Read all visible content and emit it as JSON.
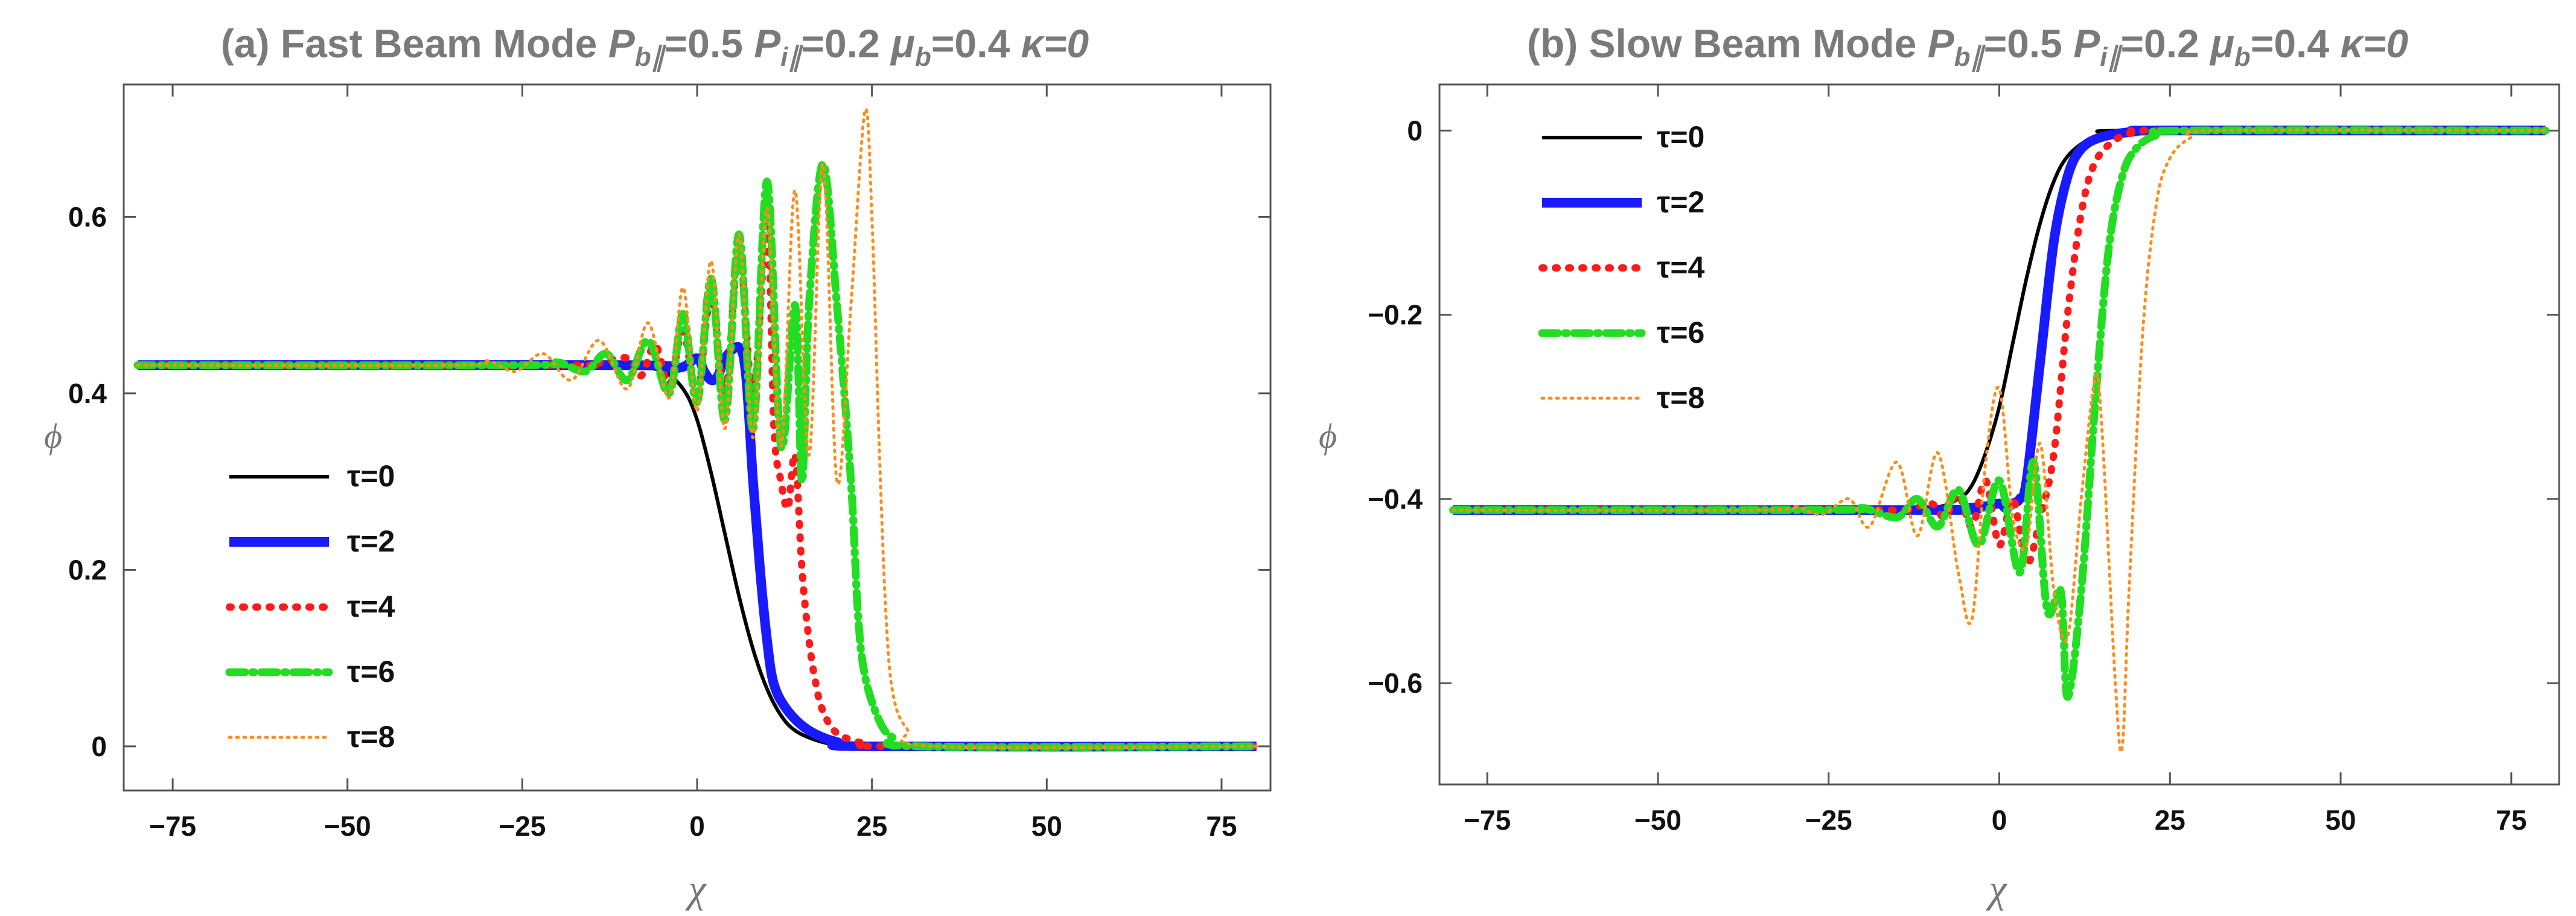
{
  "chart_data": [
    {
      "type": "line",
      "title": "(a) Fast Beam Mode P_b∥=0.5 P_i∥=0.2 μ_b=0.4 κ=0",
      "title_parts": {
        "prefix": "(a) Fast Beam Mode ",
        "p_b": "P",
        "p_b_sub": "b∥",
        "p_b_val": "=0.5 ",
        "p_i": "P",
        "p_i_sub": "i∥",
        "p_i_val": "=0.2 ",
        "mu": "μ",
        "mu_sub": "b",
        "mu_val": "=0.4 ",
        "kappa": "κ=0"
      },
      "xlabel": "χ",
      "ylabel": "ϕ",
      "xlim": [
        -82,
        82
      ],
      "ylim": [
        -0.05,
        0.75
      ],
      "x_ticks": [
        -75,
        -50,
        -25,
        0,
        25,
        50,
        75
      ],
      "x_tick_labels": [
        "−75",
        "−50",
        "−25",
        "0",
        "25",
        "50",
        "75"
      ],
      "y_ticks": [
        0,
        0.2,
        0.4,
        0.6
      ],
      "y_tick_labels": [
        "0",
        "0.2",
        "0.4",
        "0.6"
      ],
      "legend_position": "center-left",
      "series": [
        {
          "name": "τ=0",
          "color": "#000000",
          "style": "solid",
          "points": [
            [
              -80,
              0.432
            ],
            [
              -20,
              0.432
            ],
            [
              -10,
              0.431
            ],
            [
              -5,
              0.425
            ],
            [
              -2,
              0.405
            ],
            [
              0,
              0.37
            ],
            [
              2,
              0.31
            ],
            [
              4,
              0.24
            ],
            [
              6,
              0.17
            ],
            [
              8,
              0.11
            ],
            [
              10,
              0.065
            ],
            [
              12,
              0.035
            ],
            [
              14,
              0.018
            ],
            [
              17,
              0.007
            ],
            [
              20,
              0.002
            ],
            [
              25,
              0
            ],
            [
              80,
              0
            ]
          ]
        },
        {
          "name": "τ=2",
          "color": "#1a1aff",
          "style": "thick",
          "points": [
            [
              -80,
              0.432
            ],
            [
              -10,
              0.432
            ],
            [
              -5,
              0.428
            ],
            [
              -2,
              0.43
            ],
            [
              0,
              0.44
            ],
            [
              1,
              0.425
            ],
            [
              2,
              0.415
            ],
            [
              3,
              0.42
            ],
            [
              4,
              0.44
            ],
            [
              6,
              0.452
            ],
            [
              7,
              0.42
            ],
            [
              8,
              0.3
            ],
            [
              9,
              0.2
            ],
            [
              10,
              0.12
            ],
            [
              11,
              0.07
            ],
            [
              13,
              0.04
            ],
            [
              16,
              0.018
            ],
            [
              20,
              0.005
            ],
            [
              25,
              0
            ],
            [
              80,
              0
            ]
          ]
        },
        {
          "name": "τ=4",
          "color": "#ff1a1a",
          "style": "dotted",
          "points": [
            [
              -80,
              0.432
            ],
            [
              -20,
              0.432
            ],
            [
              -15,
              0.433
            ],
            [
              -10,
              0.44
            ],
            [
              -8,
              0.42
            ],
            [
              -6,
              0.455
            ],
            [
              -4,
              0.41
            ],
            [
              -2,
              0.47
            ],
            [
              0,
              0.4
            ],
            [
              2,
              0.51
            ],
            [
              4,
              0.4
            ],
            [
              6,
              0.56
            ],
            [
              8,
              0.4
            ],
            [
              10,
              0.59
            ],
            [
              11,
              0.36
            ],
            [
              12,
              0.3
            ],
            [
              13,
              0.27
            ],
            [
              14,
              0.33
            ],
            [
              15,
              0.2
            ],
            [
              16,
              0.12
            ],
            [
              17,
              0.07
            ],
            [
              18,
              0.04
            ],
            [
              20,
              0.015
            ],
            [
              24,
              0.003
            ],
            [
              28,
              0
            ],
            [
              80,
              0
            ]
          ]
        },
        {
          "name": "τ=6",
          "color": "#22dd22",
          "style": "dashdot",
          "points": [
            [
              -80,
              0.432
            ],
            [
              -25,
              0.432
            ],
            [
              -20,
              0.435
            ],
            [
              -16,
              0.425
            ],
            [
              -13,
              0.445
            ],
            [
              -10,
              0.415
            ],
            [
              -7,
              0.46
            ],
            [
              -4,
              0.4
            ],
            [
              -2,
              0.49
            ],
            [
              0,
              0.39
            ],
            [
              2,
              0.53
            ],
            [
              4,
              0.37
            ],
            [
              6,
              0.58
            ],
            [
              8,
              0.36
            ],
            [
              10,
              0.64
            ],
            [
              12,
              0.34
            ],
            [
              14,
              0.5
            ],
            [
              15,
              0.3
            ],
            [
              16,
              0.5
            ],
            [
              18,
              0.66
            ],
            [
              20,
              0.5
            ],
            [
              22,
              0.3
            ],
            [
              23,
              0.15
            ],
            [
              24,
              0.08
            ],
            [
              26,
              0.03
            ],
            [
              28,
              0.01
            ],
            [
              32,
              0
            ],
            [
              80,
              0
            ]
          ]
        },
        {
          "name": "τ=8",
          "color": "#ff8c1a",
          "style": "finedot",
          "points": [
            [
              -80,
              0.432
            ],
            [
              -35,
              0.432
            ],
            [
              -30,
              0.437
            ],
            [
              -26,
              0.425
            ],
            [
              -22,
              0.445
            ],
            [
              -18,
              0.415
            ],
            [
              -14,
              0.46
            ],
            [
              -10,
              0.405
            ],
            [
              -7,
              0.48
            ],
            [
              -4,
              0.395
            ],
            [
              -2,
              0.52
            ],
            [
              0,
              0.38
            ],
            [
              2,
              0.55
            ],
            [
              4,
              0.36
            ],
            [
              6,
              0.58
            ],
            [
              8,
              0.35
            ],
            [
              10,
              0.61
            ],
            [
              12,
              0.34
            ],
            [
              14,
              0.63
            ],
            [
              16,
              0.33
            ],
            [
              18,
              0.66
            ],
            [
              20,
              0.3
            ],
            [
              22,
              0.5
            ],
            [
              24,
              0.72
            ],
            [
              25,
              0.6
            ],
            [
              26,
              0.35
            ],
            [
              27,
              0.15
            ],
            [
              28,
              0.06
            ],
            [
              30,
              0.02
            ],
            [
              34,
              0
            ],
            [
              80,
              0
            ]
          ]
        }
      ]
    },
    {
      "type": "line",
      "title": "(b) Slow Beam Mode P_b∥=0.5 P_i∥=0.2 μ_b=0.4 κ=0",
      "title_parts": {
        "prefix": "(b) Slow Beam Mode ",
        "p_b": "P",
        "p_b_sub": "b∥",
        "p_b_val": "=0.5 ",
        "p_i": "P",
        "p_i_sub": "i∥",
        "p_i_val": "=0.2 ",
        "mu": "μ",
        "mu_sub": "b",
        "mu_val": "=0.4 ",
        "kappa": "κ=0"
      },
      "xlabel": "χ",
      "ylabel": "ϕ",
      "xlim": [
        -82,
        82
      ],
      "ylim": [
        -0.71,
        0.05
      ],
      "x_ticks": [
        -75,
        -50,
        -25,
        0,
        25,
        50,
        75
      ],
      "x_tick_labels": [
        "−75",
        "−50",
        "−25",
        "0",
        "25",
        "50",
        "75"
      ],
      "y_ticks": [
        0,
        -0.2,
        -0.4,
        -0.6
      ],
      "y_tick_labels": [
        "0",
        "−0.2",
        "−0.4",
        "−0.6"
      ],
      "legend_position": "top-left",
      "series": [
        {
          "name": "τ=0",
          "color": "#000000",
          "style": "solid",
          "points": [
            [
              -80,
              -0.412
            ],
            [
              -20,
              -0.412
            ],
            [
              -10,
              -0.41
            ],
            [
              -6,
              -0.4
            ],
            [
              -4,
              -0.385
            ],
            [
              -2,
              -0.35
            ],
            [
              0,
              -0.3
            ],
            [
              2,
              -0.23
            ],
            [
              4,
              -0.16
            ],
            [
              6,
              -0.1
            ],
            [
              8,
              -0.055
            ],
            [
              10,
              -0.028
            ],
            [
              13,
              -0.01
            ],
            [
              16,
              -0.003
            ],
            [
              20,
              0
            ],
            [
              80,
              0
            ]
          ]
        },
        {
          "name": "τ=2",
          "color": "#1a1aff",
          "style": "thick",
          "points": [
            [
              -80,
              -0.412
            ],
            [
              -10,
              -0.412
            ],
            [
              -5,
              -0.41
            ],
            [
              -2,
              -0.408
            ],
            [
              0,
              -0.405
            ],
            [
              1,
              -0.41
            ],
            [
              2,
              -0.405
            ],
            [
              3,
              -0.4
            ],
            [
              4,
              -0.38
            ],
            [
              6,
              -0.25
            ],
            [
              8,
              -0.12
            ],
            [
              10,
              -0.05
            ],
            [
              12,
              -0.02
            ],
            [
              15,
              -0.007
            ],
            [
              20,
              -0.001
            ],
            [
              25,
              0
            ],
            [
              80,
              0
            ]
          ]
        },
        {
          "name": "τ=4",
          "color": "#ff1a1a",
          "style": "dotted",
          "points": [
            [
              -80,
              -0.412
            ],
            [
              -20,
              -0.412
            ],
            [
              -14,
              -0.413
            ],
            [
              -10,
              -0.405
            ],
            [
              -8,
              -0.42
            ],
            [
              -6,
              -0.395
            ],
            [
              -4,
              -0.43
            ],
            [
              -2,
              -0.38
            ],
            [
              0,
              -0.45
            ],
            [
              2,
              -0.4
            ],
            [
              4,
              -0.47
            ],
            [
              6,
              -0.42
            ],
            [
              8,
              -0.35
            ],
            [
              10,
              -0.2
            ],
            [
              12,
              -0.09
            ],
            [
              14,
              -0.035
            ],
            [
              17,
              -0.01
            ],
            [
              20,
              -0.002
            ],
            [
              25,
              0
            ],
            [
              80,
              0
            ]
          ]
        },
        {
          "name": "τ=6",
          "color": "#22dd22",
          "style": "dashdot",
          "points": [
            [
              -80,
              -0.412
            ],
            [
              -25,
              -0.412
            ],
            [
              -20,
              -0.41
            ],
            [
              -15,
              -0.42
            ],
            [
              -12,
              -0.4
            ],
            [
              -9,
              -0.43
            ],
            [
              -6,
              -0.39
            ],
            [
              -3,
              -0.45
            ],
            [
              0,
              -0.38
            ],
            [
              3,
              -0.48
            ],
            [
              5,
              -0.36
            ],
            [
              7,
              -0.52
            ],
            [
              9,
              -0.5
            ],
            [
              10,
              -0.615
            ],
            [
              12,
              -0.5
            ],
            [
              14,
              -0.3
            ],
            [
              16,
              -0.13
            ],
            [
              18,
              -0.05
            ],
            [
              20,
              -0.02
            ],
            [
              23,
              -0.005
            ],
            [
              28,
              0
            ],
            [
              80,
              0
            ]
          ]
        },
        {
          "name": "τ=8",
          "color": "#ff8c1a",
          "style": "finedot",
          "points": [
            [
              -80,
              -0.412
            ],
            [
              -35,
              -0.412
            ],
            [
              -30,
              -0.408
            ],
            [
              -26,
              -0.417
            ],
            [
              -22,
              -0.4
            ],
            [
              -19,
              -0.43
            ],
            [
              -15,
              -0.36
            ],
            [
              -12,
              -0.44
            ],
            [
              -9,
              -0.35
            ],
            [
              -6,
              -0.48
            ],
            [
              -4,
              -0.53
            ],
            [
              -2,
              -0.36
            ],
            [
              0,
              -0.28
            ],
            [
              2,
              -0.42
            ],
            [
              4,
              -0.45
            ],
            [
              6,
              -0.34
            ],
            [
              8,
              -0.5
            ],
            [
              10,
              -0.55
            ],
            [
              12,
              -0.4
            ],
            [
              14,
              -0.27
            ],
            [
              15,
              -0.32
            ],
            [
              17,
              -0.6
            ],
            [
              18,
              -0.67
            ],
            [
              19,
              -0.5
            ],
            [
              21,
              -0.22
            ],
            [
              23,
              -0.08
            ],
            [
              25,
              -0.03
            ],
            [
              28,
              -0.008
            ],
            [
              32,
              0
            ],
            [
              80,
              0
            ]
          ]
        }
      ]
    }
  ]
}
